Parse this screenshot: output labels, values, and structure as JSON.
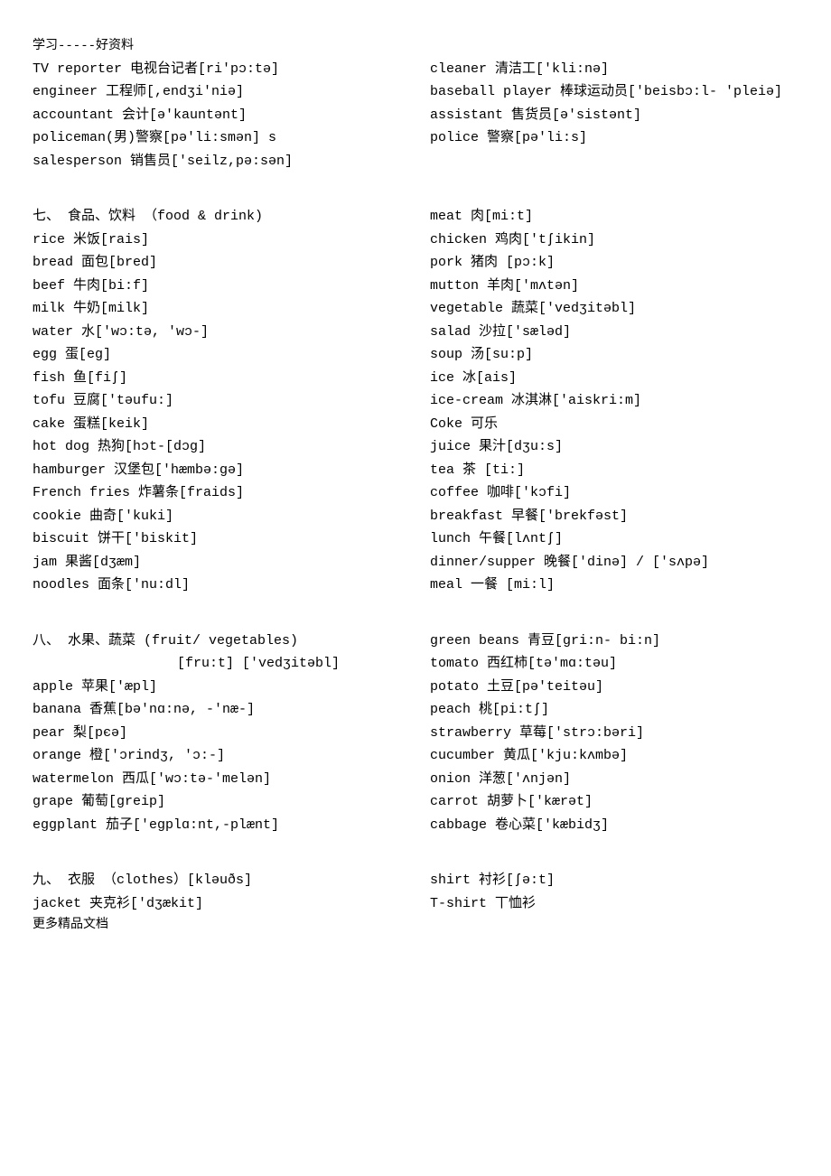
{
  "header": "学习-----好资料",
  "footer": "更多精品文档",
  "block1": {
    "left": [
      "TV reporter 电视台记者[ri'pɔ:tə]",
      "engineer 工程师[,endʒi'niə]",
      "accountant 会计[ə'kauntənt]",
      "policeman(男)警察[pə'li:smən] s",
      "salesperson 销售员['seilz,pə:sən]"
    ],
    "right": [
      "cleaner 清洁工['kli:nə]",
      "baseball player 棒球运动员['beisbɔ:l- 'pleiə]",
      "assistant 售货员[ə'sistənt]",
      "police 警察[pə'li:s]"
    ]
  },
  "block2": {
    "left": [
      "七、 食品、饮料 （food & drink)",
      "rice 米饭[rais]",
      "bread 面包[bred]",
      "beef 牛肉[bi:f]",
      "milk 牛奶[milk]",
      "water 水['wɔ:tə, 'wɔ-]",
      "egg 蛋[eg]",
      "fish 鱼[fiʃ]",
      "tofu 豆腐['təufu:]",
      "cake 蛋糕[keik]",
      "hot dog 热狗[hɔt-[dɔg]",
      "hamburger 汉堡包['hæmbə:gə]",
      "French fries 炸薯条[fraids]",
      "cookie 曲奇['kuki]",
      "biscuit 饼干['biskit]",
      "jam 果酱[dʒæm]",
      "noodles 面条['nu:dl]"
    ],
    "right": [
      "meat 肉[mi:t]",
      "chicken 鸡肉['tʃikin]",
      "pork 猪肉 [pɔ:k]",
      "mutton 羊肉['mʌtən]",
      "vegetable 蔬菜['vedʒitəbl]",
      "salad 沙拉['sæləd]",
      "soup 汤[su:p]",
      "ice 冰[ais]",
      "ice-cream 冰淇淋['aiskri:m]",
      "Coke 可乐",
      "juice 果汁[dʒu:s]",
      "tea 茶 [ti:]",
      "coffee 咖啡['kɔfi]",
      "breakfast 早餐['brekfəst]",
      "lunch 午餐[lʌntʃ]",
      "dinner/supper 晚餐['dinə] / ['sʌpə]",
      "meal 一餐 [mi:l]"
    ]
  },
  "block3": {
    "left": [
      "八、 水果、蔬菜 (fruit/ vegetables)",
      "                [fru:t] ['vedʒitəbl]",
      "apple 苹果['æpl]",
      "banana 香蕉[bə'nɑ:nə, -'næ-]",
      "pear 梨[pєə]",
      "orange 橙['ɔrindʒ, 'ɔ:-]",
      "watermelon 西瓜['wɔ:tə-'melən]",
      "grape 葡萄[greip]",
      "eggplant 茄子['egplɑ:nt,-plænt]"
    ],
    "right": [
      "green beans 青豆[gri:n- bi:n]",
      "tomato 西红柿[tə'mɑ:təu]",
      "potato 土豆[pə'teitəu]",
      "peach 桃[pi:tʃ]",
      "strawberry 草莓['strɔ:bəri]",
      "cucumber 黄瓜['kju:kʌmbə]",
      "onion 洋葱['ʌnjən]",
      "carrot 胡萝卜['kærət]",
      "cabbage 卷心菜['kæbidʒ]"
    ]
  },
  "block4": {
    "left": [
      "九、 衣服 （clothes）[kləuðs]",
      "jacket 夹克衫['dʒækit]"
    ],
    "right": [
      "shirt 衬衫[ʃə:t]",
      "T-shirt 丅恤衫"
    ]
  }
}
